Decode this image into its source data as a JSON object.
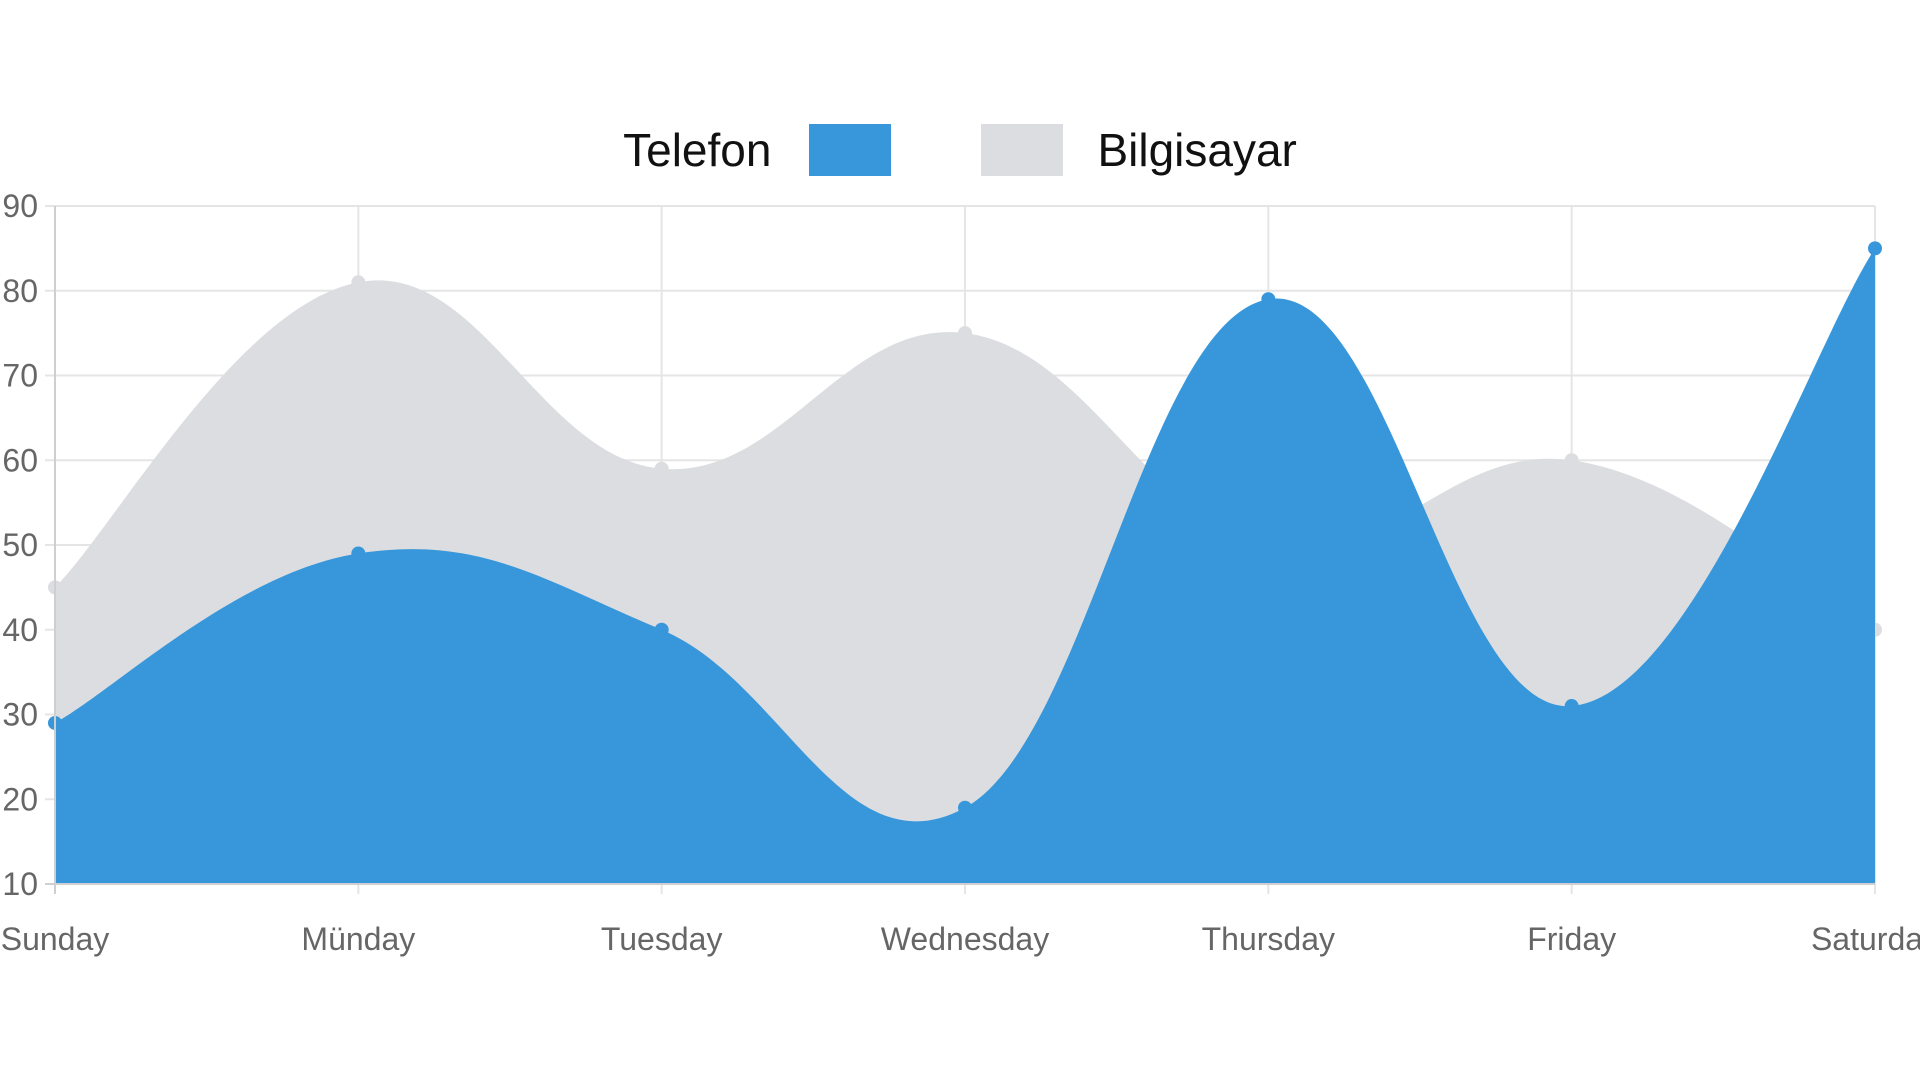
{
  "chart_data": {
    "type": "area",
    "categories": [
      "Sunday",
      "Münday",
      "Tuesday",
      "Wednesday",
      "Thursday",
      "Friday",
      "Saturday"
    ],
    "series": [
      {
        "name": "Telefon",
        "values": [
          29,
          49,
          40,
          19,
          79,
          31,
          85
        ],
        "color": "#3897DA"
      },
      {
        "name": "Bilgisayar",
        "values": [
          45,
          81,
          59,
          75,
          50,
          60,
          40
        ],
        "color": "#DCDDE0"
      }
    ],
    "ylim": [
      10,
      90
    ],
    "yticks": [
      10,
      20,
      30,
      40,
      50,
      60,
      70,
      80,
      90
    ],
    "grid": true,
    "legend_position": "top"
  }
}
